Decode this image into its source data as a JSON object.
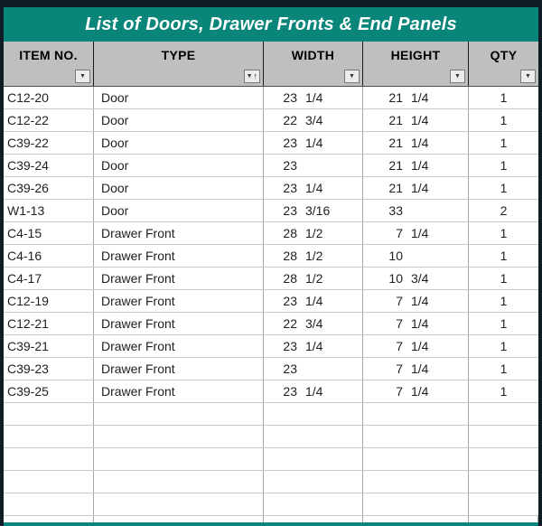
{
  "title": "List of Doors, Drawer Fronts & End Panels",
  "icons": {
    "filter_dropdown": "▼",
    "sort_ascending": "↑"
  },
  "table": {
    "columns": [
      {
        "label": "ITEM NO.",
        "filter": "filter-dropdown"
      },
      {
        "label": "TYPE",
        "filter": "filter-dropdown-sorted-ascending"
      },
      {
        "label": "WIDTH",
        "filter": "filter-dropdown"
      },
      {
        "label": "HEIGHT",
        "filter": "filter-dropdown"
      },
      {
        "label": "QTY",
        "filter": "filter-dropdown"
      }
    ],
    "rows": [
      {
        "item_no": "C12-20",
        "type": "Door",
        "width_whole": "23",
        "width_frac": "1/4",
        "height_whole": "21",
        "height_frac": "1/4",
        "qty": "1"
      },
      {
        "item_no": "C12-22",
        "type": "Door",
        "width_whole": "22",
        "width_frac": "3/4",
        "height_whole": "21",
        "height_frac": "1/4",
        "qty": "1"
      },
      {
        "item_no": "C39-22",
        "type": "Door",
        "width_whole": "23",
        "width_frac": "1/4",
        "height_whole": "21",
        "height_frac": "1/4",
        "qty": "1"
      },
      {
        "item_no": "C39-24",
        "type": "Door",
        "width_whole": "23",
        "width_frac": "",
        "height_whole": "21",
        "height_frac": "1/4",
        "qty": "1"
      },
      {
        "item_no": "C39-26",
        "type": "Door",
        "width_whole": "23",
        "width_frac": "1/4",
        "height_whole": "21",
        "height_frac": "1/4",
        "qty": "1"
      },
      {
        "item_no": "W1-13",
        "type": "Door",
        "width_whole": "23",
        "width_frac": "3/16",
        "height_whole": "33",
        "height_frac": "",
        "qty": "2"
      },
      {
        "item_no": "C4-15",
        "type": "Drawer Front",
        "width_whole": "28",
        "width_frac": "1/2",
        "height_whole": "7",
        "height_frac": "1/4",
        "qty": "1"
      },
      {
        "item_no": "C4-16",
        "type": "Drawer Front",
        "width_whole": "28",
        "width_frac": "1/2",
        "height_whole": "10",
        "height_frac": "",
        "qty": "1"
      },
      {
        "item_no": "C4-17",
        "type": "Drawer Front",
        "width_whole": "28",
        "width_frac": "1/2",
        "height_whole": "10",
        "height_frac": "3/4",
        "qty": "1"
      },
      {
        "item_no": "C12-19",
        "type": "Drawer Front",
        "width_whole": "23",
        "width_frac": "1/4",
        "height_whole": "7",
        "height_frac": "1/4",
        "qty": "1"
      },
      {
        "item_no": "C12-21",
        "type": "Drawer Front",
        "width_whole": "22",
        "width_frac": "3/4",
        "height_whole": "7",
        "height_frac": "1/4",
        "qty": "1"
      },
      {
        "item_no": "C39-21",
        "type": "Drawer Front",
        "width_whole": "23",
        "width_frac": "1/4",
        "height_whole": "7",
        "height_frac": "1/4",
        "qty": "1"
      },
      {
        "item_no": "C39-23",
        "type": "Drawer Front",
        "width_whole": "23",
        "width_frac": "",
        "height_whole": "7",
        "height_frac": "1/4",
        "qty": "1"
      },
      {
        "item_no": "C39-25",
        "type": "Drawer Front",
        "width_whole": "23",
        "width_frac": "1/4",
        "height_whole": "7",
        "height_frac": "1/4",
        "qty": "1"
      }
    ],
    "empty_row_count": 5
  },
  "colors": {
    "banner_teal": "#0A8579",
    "frame_dark": "#0E1C26",
    "header_gray": "#BFBFBF"
  }
}
